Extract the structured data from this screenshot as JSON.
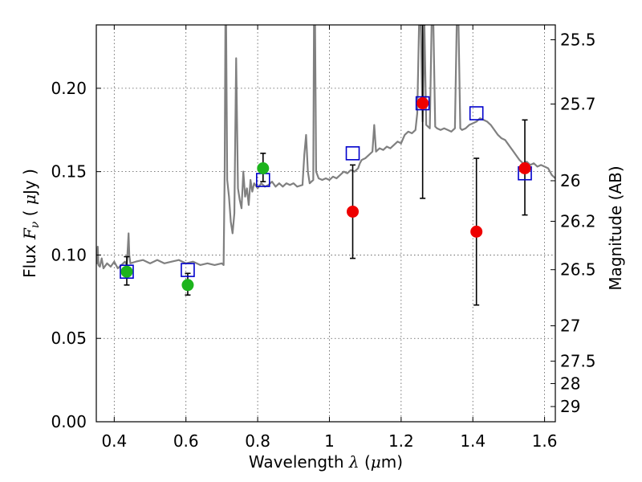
{
  "chart_data": {
    "type": "scatter",
    "xlabel_prefix": "Wavelength  ",
    "xlabel_math": "λ",
    "xlabel_suffix": " (",
    "xlabel_unit_math": "μ",
    "xlabel_unit_end": "m)",
    "ylabel_prefix": "Flux  ",
    "ylabel_math": "F",
    "ylabel_sub": "ν",
    "ylabel_mid": "  (  ",
    "ylabel_unit_math": "μ",
    "ylabel_end": "Jy  )",
    "ylabel_right": "Magnitude (AB)",
    "xlim": [
      0.35,
      1.63
    ],
    "ylim": [
      0.0,
      0.238
    ],
    "grid": true,
    "x_ticks": [
      {
        "value": 0.4,
        "label": "0.4"
      },
      {
        "value": 0.6,
        "label": "0.6"
      },
      {
        "value": 0.8,
        "label": "0.8"
      },
      {
        "value": 1.0,
        "label": "1"
      },
      {
        "value": 1.2,
        "label": "1.2"
      },
      {
        "value": 1.4,
        "label": "1.4"
      },
      {
        "value": 1.6,
        "label": "1.6"
      }
    ],
    "y_ticks": [
      {
        "value": 0.0,
        "label": "0.00"
      },
      {
        "value": 0.05,
        "label": "0.05"
      },
      {
        "value": 0.1,
        "label": "0.10"
      },
      {
        "value": 0.15,
        "label": "0.15"
      },
      {
        "value": 0.2,
        "label": "0.20"
      }
    ],
    "mag_ticks": [
      {
        "value": 25.5,
        "label": "25.5"
      },
      {
        "value": 25.7,
        "label": "25.7"
      },
      {
        "value": 26.0,
        "label": "26"
      },
      {
        "value": 26.2,
        "label": "26.2"
      },
      {
        "value": 26.5,
        "label": "26.5"
      },
      {
        "value": 27.0,
        "label": "27"
      },
      {
        "value": 27.5,
        "label": "27.5"
      },
      {
        "value": 28.0,
        "label": "28"
      },
      {
        "value": 29.0,
        "label": "29"
      }
    ],
    "colors": {
      "spectrum": "#808080",
      "green": "#1db41d",
      "red": "#ee0000",
      "model": "#0000cc",
      "errorbar": "#000000",
      "grid": "#555555"
    },
    "series": [
      {
        "name": "model spectrum",
        "kind": "line",
        "points": [
          [
            0.35,
            0.098
          ],
          [
            0.352,
            0.095
          ],
          [
            0.354,
            0.105
          ],
          [
            0.356,
            0.094
          ],
          [
            0.36,
            0.093
          ],
          [
            0.365,
            0.098
          ],
          [
            0.37,
            0.092
          ],
          [
            0.38,
            0.095
          ],
          [
            0.39,
            0.093
          ],
          [
            0.4,
            0.096
          ],
          [
            0.41,
            0.092
          ],
          [
            0.42,
            0.094
          ],
          [
            0.43,
            0.096
          ],
          [
            0.435,
            0.094
          ],
          [
            0.438,
            0.105
          ],
          [
            0.44,
            0.113
          ],
          [
            0.442,
            0.1
          ],
          [
            0.445,
            0.095
          ],
          [
            0.46,
            0.096
          ],
          [
            0.48,
            0.097
          ],
          [
            0.5,
            0.095
          ],
          [
            0.52,
            0.097
          ],
          [
            0.54,
            0.095
          ],
          [
            0.56,
            0.096
          ],
          [
            0.58,
            0.097
          ],
          [
            0.6,
            0.095
          ],
          [
            0.62,
            0.096
          ],
          [
            0.64,
            0.094
          ],
          [
            0.66,
            0.095
          ],
          [
            0.68,
            0.094
          ],
          [
            0.7,
            0.095
          ],
          [
            0.705,
            0.094
          ],
          [
            0.708,
            0.15
          ],
          [
            0.71,
            0.238
          ],
          [
            0.712,
            0.238
          ],
          [
            0.715,
            0.145
          ],
          [
            0.72,
            0.135
          ],
          [
            0.725,
            0.12
          ],
          [
            0.73,
            0.113
          ],
          [
            0.735,
            0.125
          ],
          [
            0.74,
            0.218
          ],
          [
            0.745,
            0.14
          ],
          [
            0.75,
            0.133
          ],
          [
            0.755,
            0.128
          ],
          [
            0.76,
            0.15
          ],
          [
            0.765,
            0.135
          ],
          [
            0.77,
            0.14
          ],
          [
            0.775,
            0.13
          ],
          [
            0.78,
            0.145
          ],
          [
            0.785,
            0.138
          ],
          [
            0.79,
            0.143
          ],
          [
            0.8,
            0.14
          ],
          [
            0.81,
            0.143
          ],
          [
            0.82,
            0.141
          ],
          [
            0.83,
            0.142
          ],
          [
            0.84,
            0.144
          ],
          [
            0.85,
            0.141
          ],
          [
            0.86,
            0.143
          ],
          [
            0.87,
            0.141
          ],
          [
            0.88,
            0.143
          ],
          [
            0.89,
            0.142
          ],
          [
            0.9,
            0.143
          ],
          [
            0.91,
            0.141
          ],
          [
            0.925,
            0.142
          ],
          [
            0.93,
            0.16
          ],
          [
            0.935,
            0.172
          ],
          [
            0.94,
            0.15
          ],
          [
            0.945,
            0.143
          ],
          [
            0.95,
            0.144
          ],
          [
            0.955,
            0.145
          ],
          [
            0.957,
            0.238
          ],
          [
            0.96,
            0.238
          ],
          [
            0.963,
            0.15
          ],
          [
            0.97,
            0.146
          ],
          [
            0.98,
            0.145
          ],
          [
            0.99,
            0.146
          ],
          [
            1.0,
            0.145
          ],
          [
            1.01,
            0.147
          ],
          [
            1.02,
            0.146
          ],
          [
            1.03,
            0.148
          ],
          [
            1.04,
            0.15
          ],
          [
            1.05,
            0.149
          ],
          [
            1.06,
            0.151
          ],
          [
            1.07,
            0.15
          ],
          [
            1.08,
            0.152
          ],
          [
            1.085,
            0.155
          ],
          [
            1.09,
            0.157
          ],
          [
            1.1,
            0.158
          ],
          [
            1.11,
            0.16
          ],
          [
            1.12,
            0.162
          ],
          [
            1.125,
            0.178
          ],
          [
            1.13,
            0.162
          ],
          [
            1.14,
            0.164
          ],
          [
            1.15,
            0.163
          ],
          [
            1.16,
            0.165
          ],
          [
            1.17,
            0.164
          ],
          [
            1.18,
            0.166
          ],
          [
            1.19,
            0.168
          ],
          [
            1.2,
            0.167
          ],
          [
            1.21,
            0.172
          ],
          [
            1.22,
            0.174
          ],
          [
            1.23,
            0.173
          ],
          [
            1.24,
            0.175
          ],
          [
            1.245,
            0.185
          ],
          [
            1.25,
            0.238
          ],
          [
            1.255,
            0.238
          ],
          [
            1.26,
            0.18
          ],
          [
            1.265,
            0.238
          ],
          [
            1.27,
            0.178
          ],
          [
            1.28,
            0.176
          ],
          [
            1.285,
            0.238
          ],
          [
            1.29,
            0.238
          ],
          [
            1.295,
            0.177
          ],
          [
            1.3,
            0.176
          ],
          [
            1.31,
            0.175
          ],
          [
            1.32,
            0.176
          ],
          [
            1.33,
            0.175
          ],
          [
            1.34,
            0.174
          ],
          [
            1.35,
            0.176
          ],
          [
            1.355,
            0.238
          ],
          [
            1.36,
            0.238
          ],
          [
            1.365,
            0.176
          ],
          [
            1.37,
            0.175
          ],
          [
            1.38,
            0.176
          ],
          [
            1.39,
            0.178
          ],
          [
            1.4,
            0.179
          ],
          [
            1.41,
            0.18
          ],
          [
            1.42,
            0.182
          ],
          [
            1.43,
            0.181
          ],
          [
            1.44,
            0.18
          ],
          [
            1.45,
            0.178
          ],
          [
            1.46,
            0.175
          ],
          [
            1.47,
            0.172
          ],
          [
            1.48,
            0.17
          ],
          [
            1.49,
            0.169
          ],
          [
            1.5,
            0.166
          ],
          [
            1.51,
            0.163
          ],
          [
            1.52,
            0.16
          ],
          [
            1.53,
            0.157
          ],
          [
            1.54,
            0.155
          ],
          [
            1.55,
            0.156
          ],
          [
            1.56,
            0.154
          ],
          [
            1.57,
            0.155
          ],
          [
            1.58,
            0.153
          ],
          [
            1.59,
            0.154
          ],
          [
            1.6,
            0.153
          ],
          [
            1.61,
            0.152
          ],
          [
            1.62,
            0.148
          ],
          [
            1.63,
            0.146
          ]
        ]
      },
      {
        "name": "ground-based photometry",
        "kind": "circle",
        "color": "green",
        "points": [
          {
            "x": 0.435,
            "y": 0.09,
            "err_low": 0.082,
            "err_high": 0.099
          },
          {
            "x": 0.605,
            "y": 0.082,
            "err_low": 0.076,
            "err_high": 0.089
          },
          {
            "x": 0.815,
            "y": 0.152,
            "err_low": 0.144,
            "err_high": 0.161
          }
        ]
      },
      {
        "name": "near-infrared photometry",
        "kind": "circle",
        "color": "red",
        "points": [
          {
            "x": 1.065,
            "y": 0.126,
            "err_low": 0.098,
            "err_high": 0.154
          },
          {
            "x": 1.26,
            "y": 0.191,
            "err_low": 0.134,
            "err_high": 0.238
          },
          {
            "x": 1.41,
            "y": 0.114,
            "err_low": 0.07,
            "err_high": 0.158
          },
          {
            "x": 1.545,
            "y": 0.152,
            "err_low": 0.124,
            "err_high": 0.181
          }
        ]
      },
      {
        "name": "model bandpass fluxes",
        "kind": "open-square",
        "color": "model",
        "points": [
          {
            "x": 0.435,
            "y": 0.09
          },
          {
            "x": 0.605,
            "y": 0.091
          },
          {
            "x": 0.815,
            "y": 0.145
          },
          {
            "x": 1.065,
            "y": 0.161
          },
          {
            "x": 1.26,
            "y": 0.191
          },
          {
            "x": 1.41,
            "y": 0.185
          },
          {
            "x": 1.545,
            "y": 0.149
          }
        ]
      }
    ]
  }
}
